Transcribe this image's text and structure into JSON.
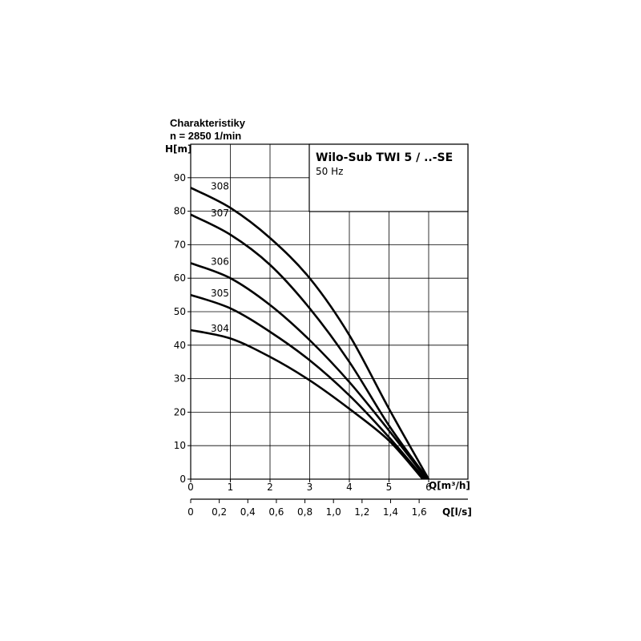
{
  "header": {
    "title": "Charakteristiky",
    "speed": "n = 2850 1/min"
  },
  "legend_box": {
    "title": "Wilo-Sub TWI 5 / ..-SE",
    "frequency": "50 Hz"
  },
  "chart_data": {
    "type": "line",
    "ylabel": "H[m]",
    "xlabel": "Q[m³/h]",
    "x2label": "Q[l/s]",
    "xlim": [
      0,
      7
    ],
    "ylim": [
      0,
      100
    ],
    "xticks": [
      "0",
      "1",
      "2",
      "3",
      "4",
      "5",
      "6"
    ],
    "yticks": [
      "0",
      "10",
      "20",
      "30",
      "40",
      "50",
      "60",
      "70",
      "80",
      "90"
    ],
    "x2ticks": [
      "0",
      "0,2",
      "0,4",
      "0,6",
      "0,8",
      "1,0",
      "1,2",
      "1,4",
      "1,6"
    ],
    "x2_values": [
      0,
      0.2,
      0.4,
      0.6,
      0.8,
      1.0,
      1.2,
      1.4,
      1.6
    ],
    "grid": true,
    "series": [
      {
        "name": "304",
        "x": [
          0,
          1,
          2,
          3,
          4,
          5,
          5.85
        ],
        "y": [
          44.5,
          42,
          36.5,
          29.5,
          21,
          11.5,
          0
        ]
      },
      {
        "name": "305",
        "x": [
          0,
          1,
          2,
          3,
          4,
          5,
          5.9
        ],
        "y": [
          55,
          51,
          44,
          35.5,
          25,
          12.5,
          0
        ]
      },
      {
        "name": "306",
        "x": [
          0,
          1,
          2,
          3,
          4,
          5,
          5.95
        ],
        "y": [
          64.5,
          60,
          52,
          41.5,
          29,
          14.5,
          0
        ]
      },
      {
        "name": "307",
        "x": [
          0,
          1,
          2,
          3,
          4,
          5,
          5.98
        ],
        "y": [
          79,
          73,
          64,
          51,
          35,
          16,
          0
        ]
      },
      {
        "name": "308",
        "x": [
          0,
          1,
          2,
          3,
          4,
          5,
          6.0
        ],
        "y": [
          87,
          81,
          72,
          60,
          43,
          21,
          0
        ]
      }
    ]
  }
}
